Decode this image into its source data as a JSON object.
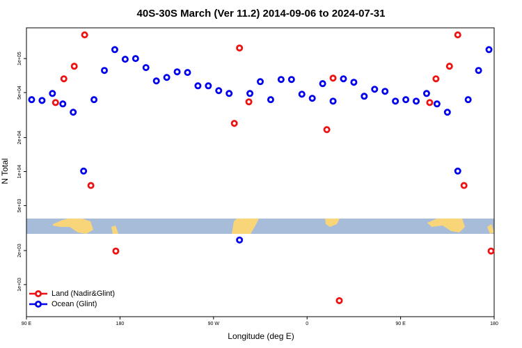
{
  "chart_data": {
    "type": "scatter",
    "title": "40S-30S March (Ver 11.2)   2014-09-06 to 2024-07-31",
    "x_label": "Longitude (deg E)",
    "y_label": "N Total",
    "log_y": true,
    "legend_position": "lower left",
    "xlim": [
      90,
      540
    ],
    "ylim": [
      520,
      187000
    ],
    "xticks": [
      {
        "value": 90,
        "label": "90 E"
      },
      180,
      {
        "value": 270,
        "label": "90 W"
      },
      {
        "value": 360,
        "label": "0"
      },
      {
        "value": 450,
        "label": "90 E"
      },
      {
        "value": 540,
        "label": "180"
      }
    ],
    "yticks": [
      {
        "value": 1000,
        "label": "1e+03"
      },
      {
        "value": 2000,
        "label": "2e+03"
      },
      {
        "value": 5000,
        "label": "5e+03"
      },
      {
        "value": 10000,
        "label": "1e+04"
      },
      {
        "value": 20000,
        "label": "2e+04"
      },
      {
        "value": 50000,
        "label": "5e+04"
      },
      {
        "value": 100000,
        "label": "1e+05"
      }
    ],
    "series": [
      {
        "name": "Land (Nadir&Glint)",
        "color": "#ee1111",
        "x": [
          118,
          126,
          136,
          146,
          152,
          176,
          290,
          295,
          304,
          379,
          385,
          391,
          478,
          484,
          497,
          505,
          511,
          537
        ],
        "values": [
          40800,
          66200,
          85500,
          162000,
          7530,
          1980,
          26700,
          124000,
          41400,
          23500,
          67100,
          721,
          40800,
          66200,
          85500,
          162000,
          7530,
          1980
        ]
      },
      {
        "name": "Ocean (Glint)",
        "color": "#0000ee",
        "x": [
          95,
          105,
          115,
          125,
          135,
          145,
          155,
          165,
          175,
          185,
          195,
          205,
          215,
          225,
          235,
          245,
          255,
          265,
          275,
          285,
          295,
          305,
          315,
          325,
          335,
          345,
          355,
          365,
          375,
          385,
          395,
          405,
          415,
          425,
          435,
          445,
          455,
          465,
          475,
          485,
          495,
          505,
          515,
          525,
          535
        ],
        "values": [
          43300,
          42600,
          49100,
          39700,
          33500,
          10100,
          43300,
          78500,
          120000,
          98600,
          100000,
          83200,
          63400,
          68100,
          76300,
          75300,
          57400,
          57400,
          52000,
          49100,
          2480,
          49100,
          62500,
          43300,
          65300,
          65300,
          48400,
          44500,
          60000,
          42000,
          66200,
          61700,
          46400,
          53500,
          51300,
          42000,
          43300,
          42000,
          49100,
          39700,
          33500,
          10100,
          43300,
          78500,
          120000
        ]
      }
    ]
  }
}
